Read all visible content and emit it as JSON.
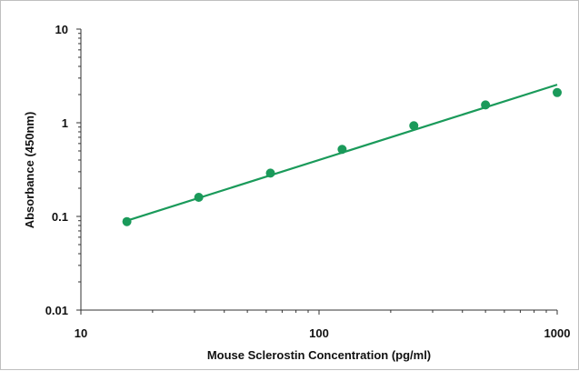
{
  "chart_data": {
    "type": "scatter",
    "title": "",
    "xlabel": "Mouse Sclerostin Concentration (pg/ml)",
    "ylabel": "Absorbance (450nm)",
    "xscale": "log",
    "yscale": "log",
    "xlim": [
      10,
      1000
    ],
    "ylim": [
      0.01,
      10
    ],
    "x_tick_labels": [
      "10",
      "100",
      "1000"
    ],
    "y_tick_labels": [
      "10",
      "1",
      "0.1",
      "0.01"
    ],
    "grid": false,
    "legend": "none",
    "series": [
      {
        "x": [
          15.6,
          31.25,
          62.5,
          125,
          250,
          500,
          1000
        ],
        "y": [
          0.088,
          0.16,
          0.29,
          0.52,
          0.93,
          1.55,
          2.1
        ]
      }
    ],
    "fit_line": {
      "x": [
        15.6,
        1000
      ],
      "y": [
        0.09,
        2.55
      ]
    },
    "colors": {
      "series": "#1a9a5a",
      "axis": "#333333",
      "frame": "#bfbfbf"
    }
  }
}
